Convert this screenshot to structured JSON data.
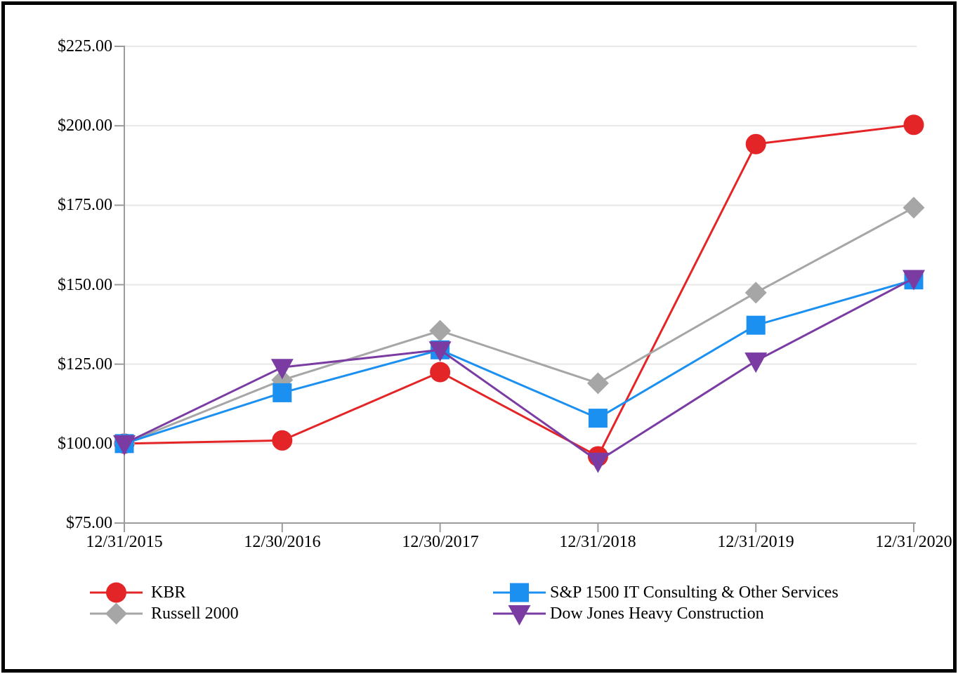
{
  "chart_data": {
    "type": "line",
    "title": "",
    "x_labels": [
      "12/31/2015",
      "12/30/2016",
      "12/30/2017",
      "12/31/2018",
      "12/31/2019",
      "12/31/2020"
    ],
    "y_tick_labels": [
      "$225.00",
      "$200.00",
      "$175.00",
      "$150.00",
      "$125.00",
      "$100.00",
      "$75.00"
    ],
    "y_ticks": [
      225,
      200,
      175,
      150,
      125,
      100,
      75
    ],
    "ylim": [
      75,
      225
    ],
    "grid": true,
    "legend_position": "bottom",
    "colors": {
      "kbr": "#e42527",
      "russell": "#a6a6a6",
      "sp1500": "#1b90f1",
      "dowjones": "#7a3ca3",
      "axis": "#9b9b9b",
      "gridline": "#e8e8e8"
    },
    "series": [
      {
        "name": "KBR",
        "color": "#e42527",
        "marker": "circle",
        "values": [
          100.0,
          101.0,
          122.5,
          96.0,
          194.25,
          200.3
        ]
      },
      {
        "name": "Russell 2000",
        "color": "#a6a6a6",
        "marker": "diamond",
        "values": [
          100.0,
          120.0,
          135.5,
          119.0,
          147.5,
          174.25
        ]
      },
      {
        "name": "S&P 1500 IT Consulting & Other Services",
        "color": "#1b90f1",
        "marker": "square",
        "values": [
          100.0,
          116.0,
          129.5,
          108.0,
          137.25,
          151.5
        ]
      },
      {
        "name": "Dow Jones Heavy Construction",
        "color": "#7a3ca3",
        "marker": "triangle-down",
        "values": [
          100.0,
          124.0,
          129.5,
          94.5,
          126.0,
          152.0
        ]
      }
    ]
  }
}
